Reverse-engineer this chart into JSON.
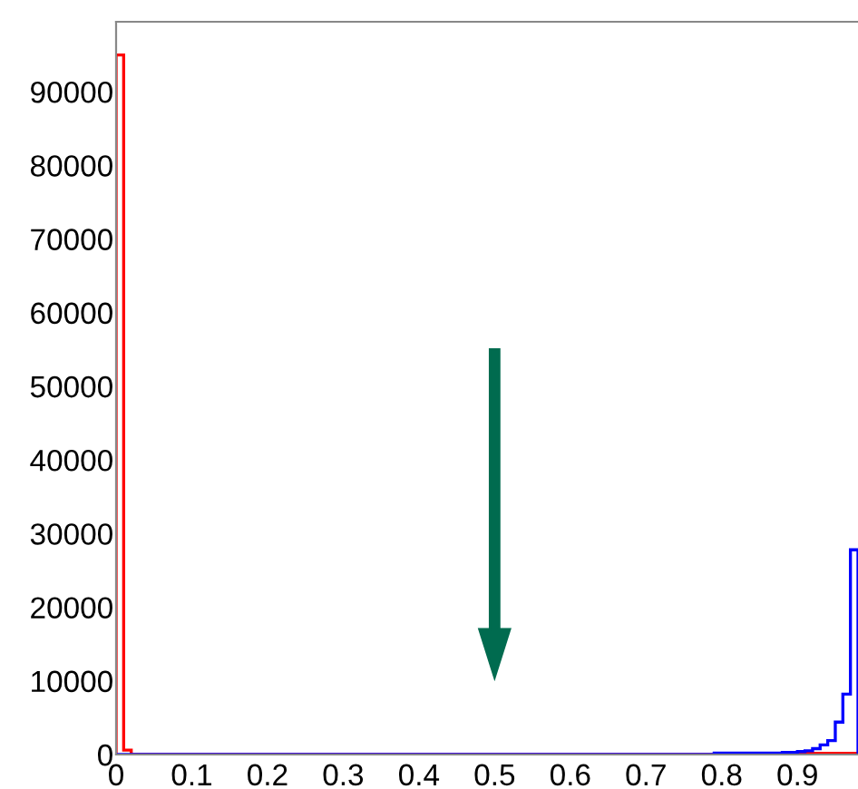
{
  "chart_data": {
    "type": "histogram",
    "bins": [
      0,
      0.01,
      0.02,
      0.03,
      0.04,
      0.05,
      0.06,
      0.07,
      0.08,
      0.09,
      0.1,
      0.11,
      0.12,
      0.13,
      0.14,
      0.15,
      0.16,
      0.17,
      0.18,
      0.19,
      0.2,
      0.21,
      0.22,
      0.23,
      0.24,
      0.25,
      0.26,
      0.27,
      0.28,
      0.29,
      0.3,
      0.31,
      0.32,
      0.33,
      0.34,
      0.35,
      0.36,
      0.37,
      0.38,
      0.39,
      0.4,
      0.41,
      0.42,
      0.43,
      0.44,
      0.45,
      0.46,
      0.47,
      0.48,
      0.49,
      0.5,
      0.51,
      0.52,
      0.53,
      0.54,
      0.55,
      0.56,
      0.57,
      0.58,
      0.59,
      0.6,
      0.61,
      0.62,
      0.63,
      0.64,
      0.65,
      0.66,
      0.67,
      0.68,
      0.69,
      0.7,
      0.71,
      0.72,
      0.73,
      0.74,
      0.75,
      0.76,
      0.77,
      0.78,
      0.79,
      0.8,
      0.81,
      0.82,
      0.83,
      0.84,
      0.85,
      0.86,
      0.87,
      0.88,
      0.89,
      0.9,
      0.91,
      0.92,
      0.93,
      0.94,
      0.95,
      0.96,
      0.97,
      0.98
    ],
    "series": [
      {
        "color": "#ff0000",
        "values": [
          95000,
          600,
          0,
          0,
          0,
          0,
          0,
          0,
          0,
          0,
          0,
          0,
          0,
          0,
          0,
          0,
          0,
          0,
          0,
          0,
          0,
          0,
          0,
          0,
          0,
          0,
          0,
          0,
          0,
          0,
          0,
          0,
          0,
          0,
          0,
          0,
          0,
          0,
          0,
          0,
          0,
          0,
          0,
          0,
          0,
          0,
          0,
          0,
          0,
          0,
          0,
          0,
          0,
          0,
          0,
          0,
          0,
          0,
          0,
          0,
          0,
          0,
          0,
          0,
          0,
          0,
          0,
          0,
          0,
          0,
          0,
          0,
          0,
          0,
          0,
          0,
          0,
          0,
          0,
          0,
          0,
          0,
          0,
          0,
          0,
          0,
          0,
          150,
          150,
          150,
          150,
          150,
          150,
          150,
          150,
          150,
          150,
          150
        ]
      },
      {
        "color": "#0000ff",
        "values": [
          0,
          0,
          0,
          0,
          0,
          0,
          0,
          0,
          0,
          0,
          0,
          0,
          0,
          0,
          0,
          0,
          0,
          0,
          0,
          0,
          0,
          0,
          0,
          0,
          0,
          0,
          0,
          0,
          0,
          0,
          0,
          0,
          0,
          0,
          0,
          0,
          0,
          0,
          0,
          0,
          0,
          0,
          0,
          0,
          0,
          0,
          0,
          0,
          0,
          0,
          0,
          0,
          0,
          0,
          0,
          0,
          0,
          0,
          0,
          0,
          0,
          0,
          0,
          0,
          0,
          0,
          0,
          0,
          0,
          0,
          0,
          0,
          0,
          0,
          0,
          0,
          0,
          0,
          0,
          200,
          200,
          200,
          200,
          200,
          200,
          200,
          200,
          200,
          300,
          300,
          400,
          500,
          800,
          1300,
          1900,
          4400,
          8200,
          27800
        ]
      }
    ],
    "xlim": [
      0,
      0.98
    ],
    "xticks": [
      0,
      0.1,
      0.2,
      0.3,
      0.4,
      0.5,
      0.6,
      0.7,
      0.8,
      0.9
    ],
    "ylim": [
      0,
      99500
    ],
    "yticks": [
      0,
      10000,
      20000,
      30000,
      40000,
      50000,
      60000,
      70000,
      80000,
      90000
    ],
    "grid": false,
    "legend": false
  }
}
